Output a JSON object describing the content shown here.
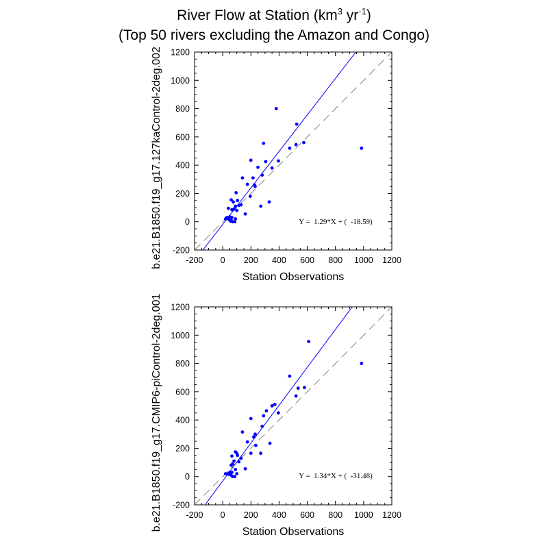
{
  "title": {
    "main": "River Flow at Station (km",
    "sup1": "3",
    "mid": " yr",
    "sup2": "-1",
    "end": ")",
    "line2": "(Top 50 rivers excluding the Amazon and Congo)"
  },
  "colors": {
    "points": "#0000ff",
    "fit": "#0000ff",
    "reference": "#808080",
    "axes": "#000000"
  },
  "chart_data": [
    {
      "type": "scatter",
      "xlabel": "Station Observations",
      "ylabel": "b.e21.B1850.f19_g17.127kaControl-2deg.002",
      "xlim": [
        -200,
        1200
      ],
      "ylim": [
        -200,
        1200
      ],
      "xticks": [
        -200,
        0,
        200,
        400,
        600,
        800,
        1000,
        1200
      ],
      "yticks": [
        -200,
        0,
        200,
        400,
        600,
        800,
        1000,
        1200
      ],
      "tick_labels": [
        "-200",
        "0",
        "200",
        "400",
        "600",
        "800",
        "1000",
        "1200"
      ],
      "fit": {
        "slope": 1.29,
        "intercept": -18.59,
        "label": "Y =  1.29*X + (  -18.59)"
      },
      "reference_line": "1:1",
      "points": [
        [
          380,
          800
        ],
        [
          525,
          690
        ],
        [
          290,
          555
        ],
        [
          575,
          560
        ],
        [
          520,
          545
        ],
        [
          475,
          520
        ],
        [
          985,
          520
        ],
        [
          200,
          435
        ],
        [
          305,
          425
        ],
        [
          395,
          430
        ],
        [
          250,
          385
        ],
        [
          350,
          380
        ],
        [
          140,
          310
        ],
        [
          215,
          310
        ],
        [
          280,
          330
        ],
        [
          175,
          265
        ],
        [
          225,
          260
        ],
        [
          95,
          205
        ],
        [
          230,
          250
        ],
        [
          195,
          180
        ],
        [
          60,
          155
        ],
        [
          105,
          150
        ],
        [
          75,
          140
        ],
        [
          130,
          120
        ],
        [
          115,
          115
        ],
        [
          90,
          110
        ],
        [
          40,
          95
        ],
        [
          80,
          90
        ],
        [
          65,
          85
        ],
        [
          100,
          80
        ],
        [
          160,
          55
        ],
        [
          270,
          110
        ],
        [
          330,
          140
        ],
        [
          50,
          35
        ],
        [
          20,
          20
        ],
        [
          45,
          15
        ],
        [
          60,
          10
        ],
        [
          70,
          0
        ],
        [
          90,
          20
        ],
        [
          55,
          5
        ],
        [
          30,
          30
        ],
        [
          85,
          0
        ],
        [
          40,
          20
        ],
        [
          65,
          30
        ]
      ]
    },
    {
      "type": "scatter",
      "xlabel": "Station Observations",
      "ylabel": "b.e21.B1850.f19_g17.CMIP6-piControl-2deg.001",
      "xlim": [
        -200,
        1200
      ],
      "ylim": [
        -200,
        1200
      ],
      "xticks": [
        -200,
        0,
        200,
        400,
        600,
        800,
        1000,
        1200
      ],
      "yticks": [
        -200,
        0,
        200,
        400,
        600,
        800,
        1000,
        1200
      ],
      "tick_labels": [
        "-200",
        "0",
        "200",
        "400",
        "600",
        "800",
        "1000",
        "1200"
      ],
      "fit": {
        "slope": 1.34,
        "intercept": -31.48,
        "label": "Y =  1.34*X + (  -31.48)"
      },
      "reference_line": "1:1",
      "points": [
        [
          610,
          955
        ],
        [
          985,
          800
        ],
        [
          475,
          710
        ],
        [
          580,
          630
        ],
        [
          535,
          625
        ],
        [
          520,
          570
        ],
        [
          370,
          510
        ],
        [
          350,
          500
        ],
        [
          310,
          465
        ],
        [
          395,
          450
        ],
        [
          290,
          430
        ],
        [
          200,
          410
        ],
        [
          280,
          355
        ],
        [
          140,
          315
        ],
        [
          230,
          300
        ],
        [
          220,
          280
        ],
        [
          175,
          245
        ],
        [
          335,
          235
        ],
        [
          235,
          220
        ],
        [
          200,
          165
        ],
        [
          270,
          165
        ],
        [
          105,
          150
        ],
        [
          65,
          145
        ],
        [
          90,
          175
        ],
        [
          100,
          165
        ],
        [
          130,
          130
        ],
        [
          80,
          110
        ],
        [
          115,
          105
        ],
        [
          70,
          90
        ],
        [
          60,
          80
        ],
        [
          160,
          55
        ],
        [
          90,
          50
        ],
        [
          50,
          30
        ],
        [
          20,
          20
        ],
        [
          45,
          15
        ],
        [
          60,
          10
        ],
        [
          70,
          0
        ],
        [
          85,
          0
        ],
        [
          100,
          20
        ],
        [
          40,
          20
        ],
        [
          65,
          30
        ]
      ]
    }
  ]
}
